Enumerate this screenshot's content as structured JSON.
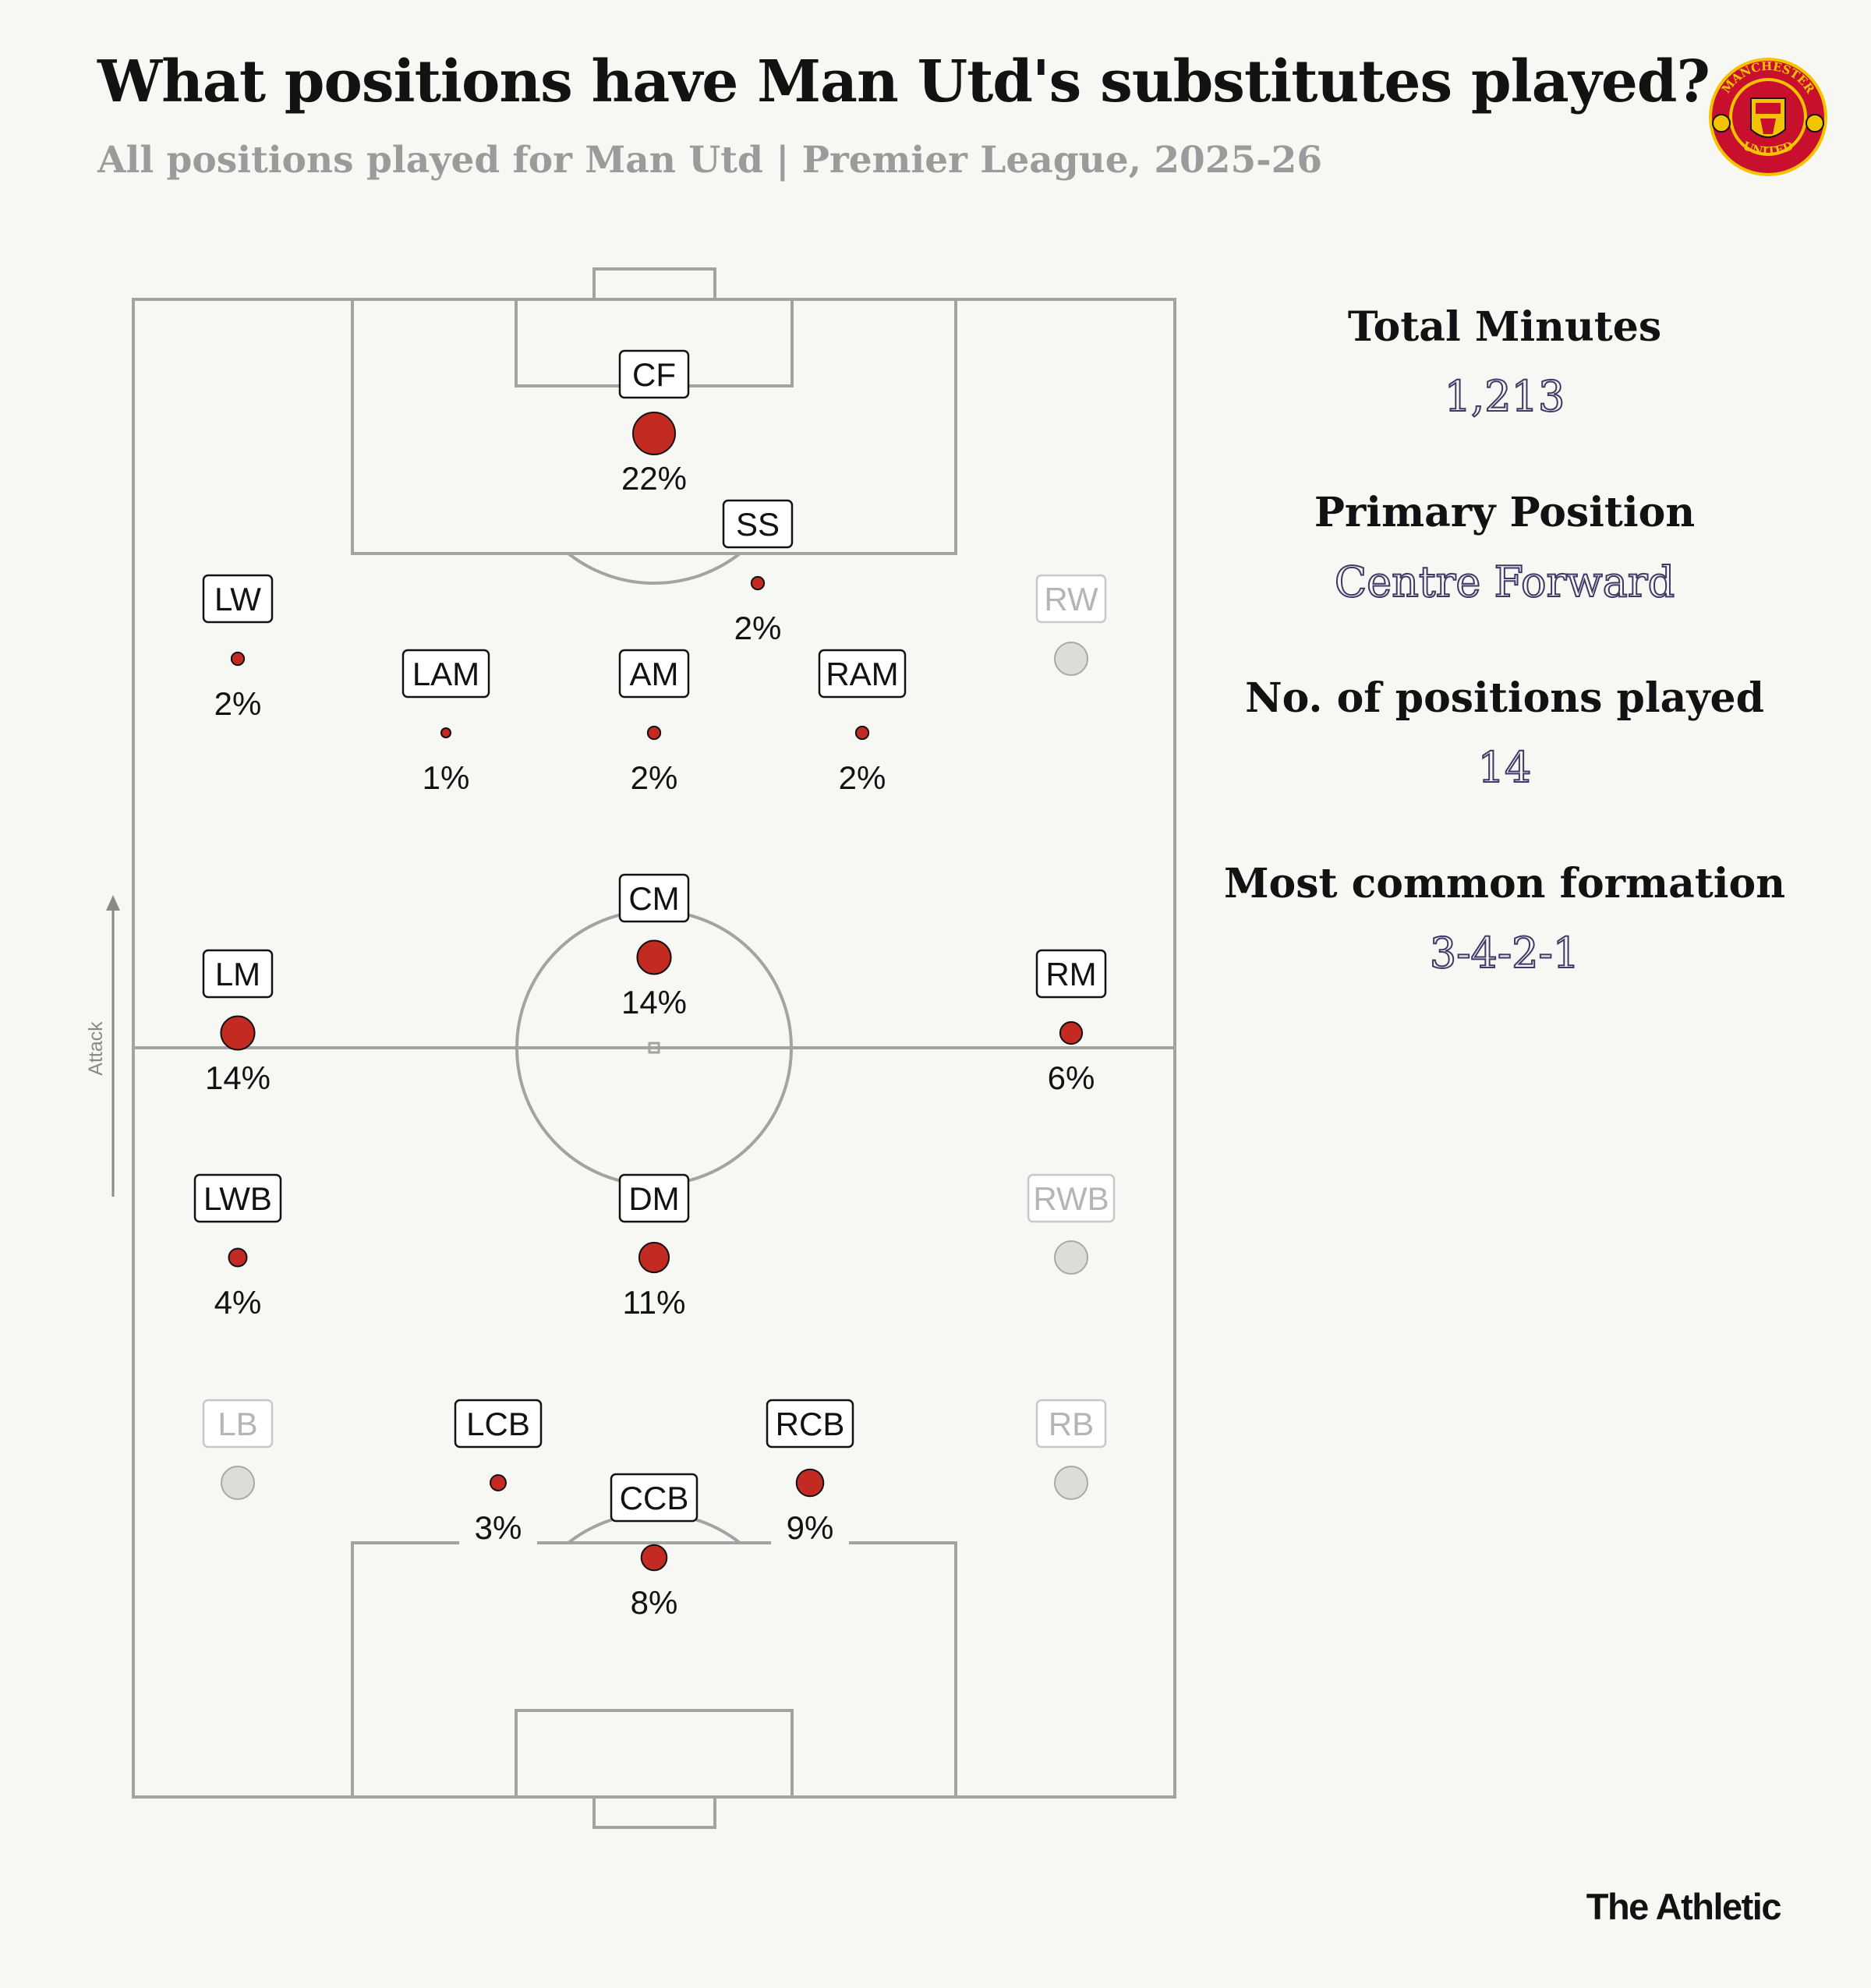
{
  "title": "What positions have Man Utd's substitutes played?",
  "subtitle": "All positions played for Man Utd | Premier League, 2025-26",
  "crest": {
    "top_text": "MANCHESTER",
    "bottom_text": "UNITED",
    "colors": {
      "red": "#c8102e",
      "gold": "#f5c400",
      "black": "#111111"
    }
  },
  "axis_label": "Attack",
  "stats": [
    {
      "label": "Total Minutes",
      "value": "1,213"
    },
    {
      "label": "Primary Position",
      "value": "Centre Forward"
    },
    {
      "label": "No. of positions played",
      "value": "14"
    },
    {
      "label": "Most common formation",
      "value": "3-4-2-1"
    }
  ],
  "brand": "The Athletic",
  "colors": {
    "played_dot": "#c22a22",
    "unplayed_dot": "#dcdcd8",
    "pitch_line": "#a3a3a3",
    "value_text": "#3d3a66"
  },
  "chart_data": {
    "type": "scatter",
    "positions": [
      {
        "code": "CF",
        "share": 22,
        "label": "22%",
        "played": true
      },
      {
        "code": "SS",
        "share": 2,
        "label": "2%",
        "played": true
      },
      {
        "code": "LW",
        "share": 2,
        "label": "2%",
        "played": true
      },
      {
        "code": "RW",
        "share": 0,
        "label": "",
        "played": false
      },
      {
        "code": "LAM",
        "share": 1,
        "label": "1%",
        "played": true
      },
      {
        "code": "AM",
        "share": 2,
        "label": "2%",
        "played": true
      },
      {
        "code": "RAM",
        "share": 2,
        "label": "2%",
        "played": true
      },
      {
        "code": "CM",
        "share": 14,
        "label": "14%",
        "played": true
      },
      {
        "code": "LM",
        "share": 14,
        "label": "14%",
        "played": true
      },
      {
        "code": "RM",
        "share": 6,
        "label": "6%",
        "played": true
      },
      {
        "code": "LWB",
        "share": 4,
        "label": "4%",
        "played": true
      },
      {
        "code": "DM",
        "share": 11,
        "label": "11%",
        "played": true
      },
      {
        "code": "RWB",
        "share": 0,
        "label": "",
        "played": false
      },
      {
        "code": "LB",
        "share": 0,
        "label": "",
        "played": false
      },
      {
        "code": "LCB",
        "share": 3,
        "label": "3%",
        "played": true
      },
      {
        "code": "RCB",
        "share": 9,
        "label": "9%",
        "played": true
      },
      {
        "code": "RB",
        "share": 0,
        "label": "",
        "played": false
      },
      {
        "code": "CCB",
        "share": 8,
        "label": "8%",
        "played": true
      }
    ]
  }
}
